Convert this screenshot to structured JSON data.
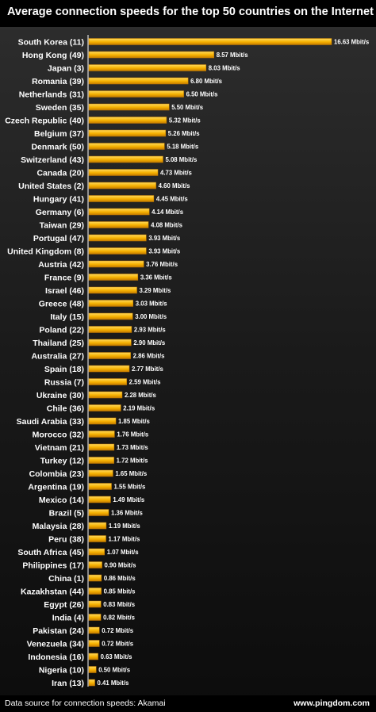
{
  "chart_data": {
    "type": "bar",
    "orientation": "horizontal",
    "title": "Average connection speeds for the top 50 countries on the Internet",
    "categories": [
      "South Korea (11)",
      "Hong Kong (49)",
      "Japan (3)",
      "Romania (39)",
      "Netherlands (31)",
      "Sweden (35)",
      "Czech Republic (40)",
      "Belgium (37)",
      "Denmark (50)",
      "Switzerland (43)",
      "Canada (20)",
      "United States (2)",
      "Hungary (41)",
      "Germany (6)",
      "Taiwan (29)",
      "Portugal (47)",
      "United Kingdom (8)",
      "Austria (42)",
      "France (9)",
      "Israel (46)",
      "Greece (48)",
      "Italy (15)",
      "Poland (22)",
      "Thailand (25)",
      "Australia (27)",
      "Spain (18)",
      "Russia (7)",
      "Ukraine (30)",
      "Chile (36)",
      "Saudi Arabia (33)",
      "Morocco (32)",
      "Vietnam (21)",
      "Turkey (12)",
      "Colombia (23)",
      "Argentina (19)",
      "Mexico (14)",
      "Brazil (5)",
      "Malaysia (28)",
      "Peru (38)",
      "South Africa (45)",
      "Philippines (17)",
      "China (1)",
      "Kazakhstan (44)",
      "Egypt (26)",
      "India (4)",
      "Pakistan (24)",
      "Venezuela (34)",
      "Indonesia (16)",
      "Nigeria (10)",
      "Iran (13)"
    ],
    "values": [
      16.63,
      8.57,
      8.03,
      6.8,
      6.5,
      5.5,
      5.32,
      5.26,
      5.18,
      5.08,
      4.73,
      4.6,
      4.45,
      4.14,
      4.08,
      3.93,
      3.93,
      3.76,
      3.36,
      3.29,
      3.03,
      3.0,
      2.93,
      2.9,
      2.86,
      2.77,
      2.59,
      2.28,
      2.19,
      1.85,
      1.76,
      1.73,
      1.72,
      1.65,
      1.55,
      1.49,
      1.36,
      1.19,
      1.17,
      1.07,
      0.9,
      0.86,
      0.85,
      0.83,
      0.82,
      0.72,
      0.72,
      0.63,
      0.5,
      0.41
    ],
    "value_labels": [
      "16.63 Mbit/s",
      "8.57 Mbit/s",
      "8.03 Mbit/s",
      "6.80 Mbit/s",
      "6.50 Mbit/s",
      "5.50 Mbit/s",
      "5.32 Mbit/s",
      "5.26 Mbit/s",
      "5.18 Mbit/s",
      "5.08 Mbit/s",
      "4.73 Mbit/s",
      "4.60 Mbit/s",
      "4.45 Mbit/s",
      "4.14 Mbit/s",
      "4.08 Mbit/s",
      "3.93 Mbit/s",
      "3.93 Mbit/s",
      "3.76 Mbit/s",
      "3.36 Mbit/s",
      "3.29 Mbit/s",
      "3.03 Mbit/s",
      "3.00 Mbit/s",
      "2.93 Mbit/s",
      "2.90 Mbit/s",
      "2.86 Mbit/s",
      "2.77 Mbit/s",
      "2.59 Mbit/s",
      "2.28 Mbit/s",
      "2.19 Mbit/s",
      "1.85 Mbit/s",
      "1.76 Mbit/s",
      "1.73 Mbit/s",
      "1.72 Mbit/s",
      "1.65 Mbit/s",
      "1.55 Mbit/s",
      "1.49 Mbit/s",
      "1.36 Mbit/s",
      "1.19 Mbit/s",
      "1.17 Mbit/s",
      "1.07 Mbit/s",
      "0.90 Mbit/s",
      "0.86 Mbit/s",
      "0.85 Mbit/s",
      "0.83 Mbit/s",
      "0.82 Mbit/s",
      "0.72 Mbit/s",
      "0.72 Mbit/s",
      "0.63 Mbit/s",
      "0.50 Mbit/s",
      "0.41 Mbit/s"
    ],
    "xlim": [
      0,
      16.63
    ],
    "grid": false,
    "legend": "none",
    "colors": {
      "bar_light": "#ffdb5c",
      "bar_mid": "#f5b000",
      "bar_dark": "#c47a00",
      "axis": "#ffffff",
      "text": "#ffffff",
      "background_top": "#3a3a3a",
      "background_bottom": "#0c0c0c"
    }
  },
  "footer": {
    "source": "Data source for connection speeds: Akamai",
    "site": "www.pingdom.com"
  }
}
